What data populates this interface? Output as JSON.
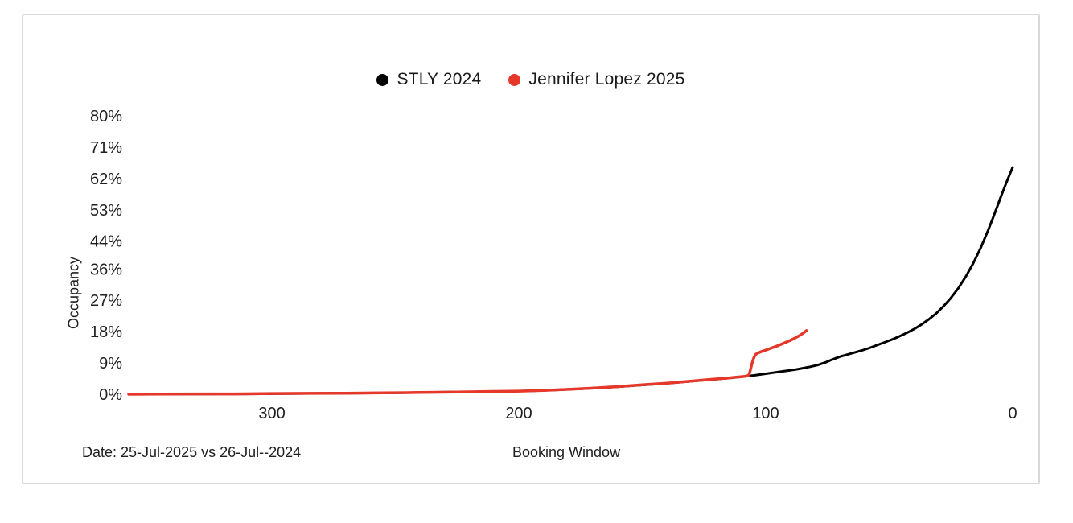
{
  "legend": {
    "items": [
      {
        "label": "STLY 2024",
        "color": "#000000"
      },
      {
        "label": "Jennifer Lopez 2025",
        "color": "#e5372a"
      }
    ]
  },
  "chart_data": {
    "type": "line",
    "title": "",
    "xlabel": "Booking Window",
    "ylabel": "Occupancy",
    "annotation": "Date: 25-Jul-2025 vs 26-Jul--2024",
    "x_axis_reversed": true,
    "xlim": [
      358,
      0
    ],
    "ylim": [
      0,
      80
    ],
    "grid": false,
    "legend_position": "top-center",
    "x_ticks": [
      {
        "value": 300,
        "label": "300"
      },
      {
        "value": 200,
        "label": "200"
      },
      {
        "value": 100,
        "label": "100"
      },
      {
        "value": 0,
        "label": "0"
      }
    ],
    "y_ticks": [
      {
        "value": 0,
        "label": "0%"
      },
      {
        "value": 9,
        "label": "9%"
      },
      {
        "value": 18,
        "label": "18%"
      },
      {
        "value": 27,
        "label": "27%"
      },
      {
        "value": 36,
        "label": "36%"
      },
      {
        "value": 44,
        "label": "44%"
      },
      {
        "value": 53,
        "label": "53%"
      },
      {
        "value": 62,
        "label": "62%"
      },
      {
        "value": 71,
        "label": "71%"
      },
      {
        "value": 80,
        "label": "80%"
      }
    ],
    "series": [
      {
        "name": "STLY 2024",
        "color": "#000000",
        "width": 3,
        "points": [
          [
            358,
            0.0
          ],
          [
            350,
            0.0
          ],
          [
            340,
            0.05
          ],
          [
            330,
            0.05
          ],
          [
            320,
            0.1
          ],
          [
            310,
            0.1
          ],
          [
            300,
            0.15
          ],
          [
            290,
            0.2
          ],
          [
            280,
            0.25
          ],
          [
            270,
            0.3
          ],
          [
            260,
            0.35
          ],
          [
            250,
            0.4
          ],
          [
            240,
            0.5
          ],
          [
            230,
            0.6
          ],
          [
            220,
            0.7
          ],
          [
            210,
            0.75
          ],
          [
            205,
            0.8
          ],
          [
            200,
            0.9
          ],
          [
            195,
            1.0
          ],
          [
            190,
            1.1
          ],
          [
            185,
            1.25
          ],
          [
            180,
            1.4
          ],
          [
            175,
            1.55
          ],
          [
            170,
            1.75
          ],
          [
            165,
            1.95
          ],
          [
            160,
            2.15
          ],
          [
            155,
            2.4
          ],
          [
            150,
            2.65
          ],
          [
            145,
            2.9
          ],
          [
            140,
            3.15
          ],
          [
            135,
            3.45
          ],
          [
            130,
            3.75
          ],
          [
            125,
            4.05
          ],
          [
            120,
            4.35
          ],
          [
            115,
            4.65
          ],
          [
            110,
            5.0
          ],
          [
            105,
            5.4
          ],
          [
            100,
            5.9
          ],
          [
            97,
            6.2
          ],
          [
            94,
            6.5
          ],
          [
            91,
            6.8
          ],
          [
            88,
            7.1
          ],
          [
            85,
            7.5
          ],
          [
            82,
            7.9
          ],
          [
            79,
            8.4
          ],
          [
            76,
            9.1
          ],
          [
            73,
            10.0
          ],
          [
            70,
            10.8
          ],
          [
            67,
            11.4
          ],
          [
            64,
            12.0
          ],
          [
            61,
            12.6
          ],
          [
            58,
            13.3
          ],
          [
            55,
            14.1
          ],
          [
            52,
            14.9
          ],
          [
            49,
            15.7
          ],
          [
            46,
            16.6
          ],
          [
            43,
            17.6
          ],
          [
            40,
            18.7
          ],
          [
            37,
            20.0
          ],
          [
            34,
            21.5
          ],
          [
            31,
            23.2
          ],
          [
            28,
            25.3
          ],
          [
            25,
            27.7
          ],
          [
            22,
            30.5
          ],
          [
            19,
            33.8
          ],
          [
            16,
            37.6
          ],
          [
            13,
            42.0
          ],
          [
            10,
            47.0
          ],
          [
            8,
            50.6
          ],
          [
            6,
            54.4
          ],
          [
            4,
            58.2
          ],
          [
            3,
            60.0
          ],
          [
            2,
            61.8
          ],
          [
            1,
            63.5
          ],
          [
            0,
            65.2
          ]
        ]
      },
      {
        "name": "Jennifer Lopez 2025",
        "color": "#e5372a",
        "width": 3.5,
        "points": [
          [
            358,
            0.0
          ],
          [
            345,
            0.05
          ],
          [
            330,
            0.1
          ],
          [
            315,
            0.1
          ],
          [
            300,
            0.2
          ],
          [
            285,
            0.25
          ],
          [
            270,
            0.3
          ],
          [
            255,
            0.4
          ],
          [
            240,
            0.5
          ],
          [
            225,
            0.65
          ],
          [
            210,
            0.8
          ],
          [
            200,
            0.9
          ],
          [
            190,
            1.1
          ],
          [
            180,
            1.4
          ],
          [
            170,
            1.75
          ],
          [
            160,
            2.2
          ],
          [
            150,
            2.7
          ],
          [
            140,
            3.2
          ],
          [
            130,
            3.8
          ],
          [
            125,
            4.1
          ],
          [
            120,
            4.4
          ],
          [
            115,
            4.7
          ],
          [
            112,
            4.9
          ],
          [
            110,
            5.05
          ],
          [
            108,
            5.2
          ],
          [
            107,
            5.4
          ],
          [
            106.5,
            6.2
          ],
          [
            106,
            7.6
          ],
          [
            105.5,
            9.0
          ],
          [
            105,
            10.2
          ],
          [
            104.5,
            11.0
          ],
          [
            104,
            11.5
          ],
          [
            103,
            11.9
          ],
          [
            102,
            12.2
          ],
          [
            100,
            12.7
          ],
          [
            98,
            13.2
          ],
          [
            96,
            13.7
          ],
          [
            94,
            14.3
          ],
          [
            92,
            14.9
          ],
          [
            90,
            15.5
          ],
          [
            88,
            16.2
          ],
          [
            86,
            17.0
          ],
          [
            85,
            17.5
          ],
          [
            84,
            18.0
          ],
          [
            83.5,
            18.3
          ]
        ]
      }
    ]
  }
}
